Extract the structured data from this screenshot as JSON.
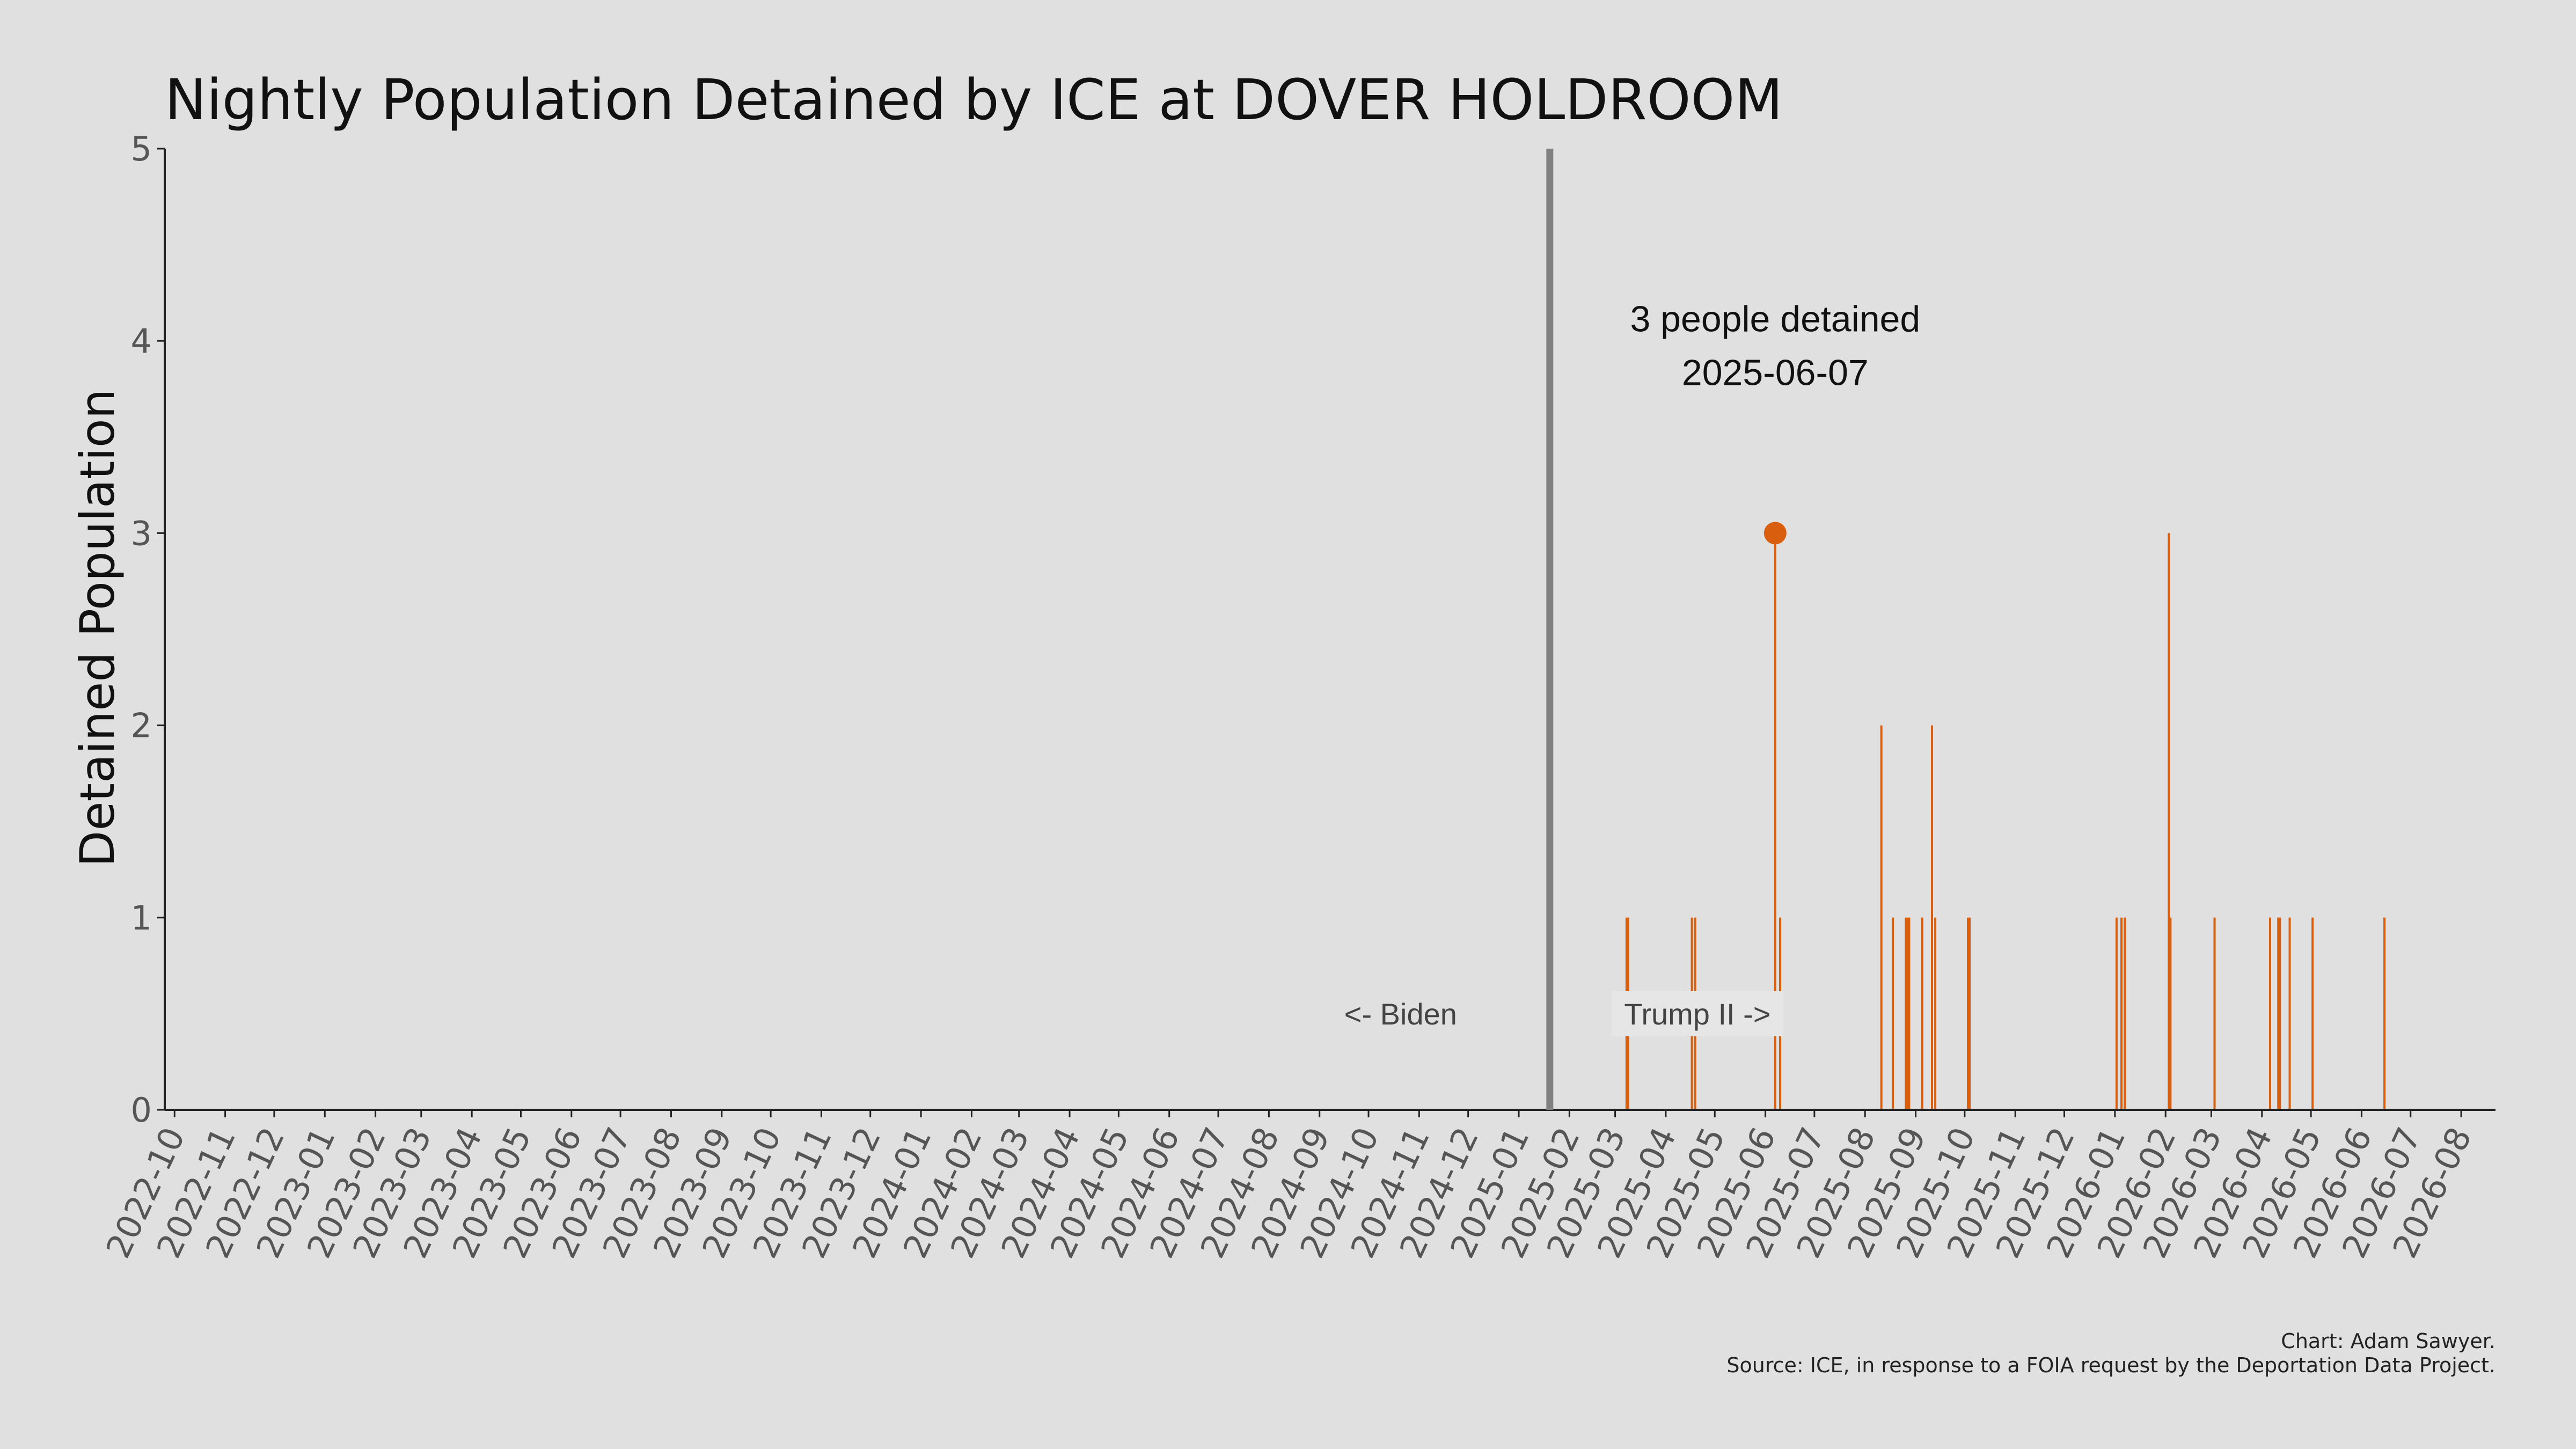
{
  "chart_data": {
    "type": "bar",
    "title": "Nightly Population Detained by ICE at DOVER HOLDROOM",
    "xlabel": "",
    "ylabel": "Detained Population",
    "ylim": [
      0,
      5
    ],
    "xlim": [
      "2022-09-25",
      "2026-08-22"
    ],
    "yticks": [
      0,
      1,
      2,
      3,
      4,
      5
    ],
    "x_ticks": [
      "2022-10",
      "2022-11",
      "2022-12",
      "2023-01",
      "2023-02",
      "2023-03",
      "2023-04",
      "2023-05",
      "2023-06",
      "2023-07",
      "2023-08",
      "2023-09",
      "2023-10",
      "2023-11",
      "2023-12",
      "2024-01",
      "2024-02",
      "2024-03",
      "2024-04",
      "2024-05",
      "2024-06",
      "2024-07",
      "2024-08",
      "2024-09",
      "2024-10",
      "2024-11",
      "2024-12",
      "2025-01",
      "2025-02",
      "2025-03",
      "2025-04",
      "2025-05",
      "2025-06",
      "2025-07",
      "2025-08",
      "2025-09",
      "2025-10",
      "2025-11",
      "2025-12",
      "2026-01",
      "2026-02",
      "2026-03",
      "2026-04",
      "2026-05",
      "2026-06",
      "2026-07",
      "2026-08"
    ],
    "color": "#d95f0e",
    "series": [
      {
        "x": [
          "2025-03-08",
          "2025-03-09",
          "2025-04-17",
          "2025-04-19",
          "2025-06-07",
          "2025-06-10",
          "2025-08-11",
          "2025-08-18",
          "2025-08-26",
          "2025-08-27",
          "2025-08-28",
          "2025-09-05",
          "2025-09-11",
          "2025-09-13",
          "2025-10-03",
          "2025-10-04",
          "2026-01-02",
          "2026-01-05",
          "2026-01-07",
          "2026-02-03",
          "2026-02-04",
          "2026-03-03",
          "2026-04-06",
          "2026-04-11",
          "2026-04-12",
          "2026-04-18",
          "2026-05-02",
          "2026-06-15"
        ],
        "values": [
          1,
          1,
          1,
          1,
          3,
          1,
          2,
          1,
          1,
          1,
          1,
          1,
          2,
          1,
          1,
          1,
          1,
          1,
          1,
          3,
          1,
          1,
          1,
          1,
          1,
          1,
          1,
          1
        ]
      }
    ],
    "highlight": {
      "x": "2025-06-07",
      "y": 3,
      "label_line1": "3 people detained",
      "label_line2": "2025-06-07"
    },
    "event_line": {
      "x": "2025-01-20"
    },
    "left_label": "<- Biden",
    "right_label": "Trump II ->",
    "grid": false,
    "credit_line1": "Chart: Adam Sawyer.",
    "credit_line2": "Source: ICE, in response to a FOIA request by the Deportation Data Project."
  }
}
